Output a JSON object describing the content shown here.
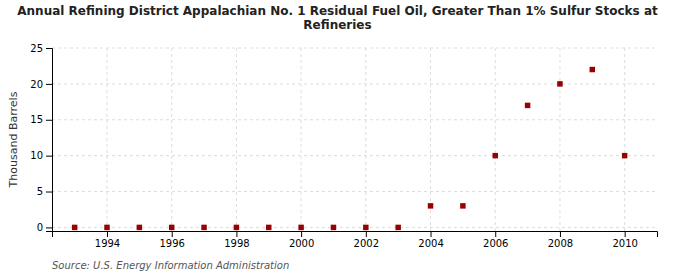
{
  "chart_data": {
    "type": "scatter",
    "title": "Annual Refining District Appalachian No. 1 Residual Fuel Oil, Greater Than 1% Sulfur Stocks at\nRefineries",
    "y_label": "Thousand Barrels",
    "annotations": [
      "Source: U.S. Energy Information Administration"
    ],
    "x": [
      1993,
      1994,
      1995,
      1996,
      1997,
      1998,
      1999,
      2000,
      2001,
      2002,
      2003,
      2004,
      2005,
      2006,
      2007,
      2008,
      2009,
      2010
    ],
    "values": [
      0,
      0,
      0,
      0,
      0,
      0,
      0,
      0,
      0,
      0,
      0,
      3,
      3,
      10,
      17,
      20,
      22,
      10
    ],
    "color": "#990000",
    "marker": "square",
    "xlim": [
      1992.3,
      2011.0
    ],
    "ylim": [
      -0.5,
      25
    ],
    "xticks": [
      1994,
      1996,
      1998,
      2000,
      2002,
      2004,
      2006,
      2008,
      2010
    ],
    "yticks": [
      0,
      5,
      10,
      15,
      20,
      25
    ],
    "grid": true
  }
}
